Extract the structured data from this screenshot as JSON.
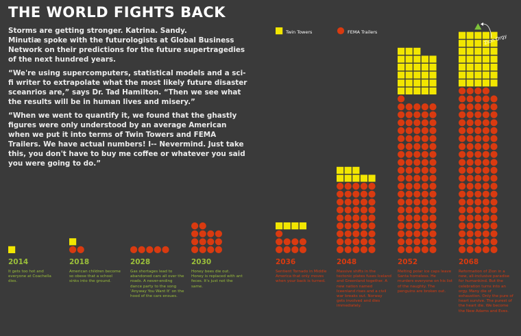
{
  "title": "THE WORLD FIGHTS BACK",
  "intro": [
    "Storms are getting stronger. Katrina. Sandy.",
    "Minutiæ spoke with the futurologists at Global Business Network on their predictions for the future supertragedies of the next hundred years.",
    "“We're using supercomputers, statistical models and a sci-fi writer to extrapolate what the most likely future disaster sceanrios are,” says Dr. Tad Hamilton. “Then we see what the results will be in human lives and misery.”",
    "“When we went to quantify it, we found that the ghastly figures were only understood by an average American when we put it into terms of Twin Towers and FEMA Trailers. We have actual numbers! I-- Nevermind. Just take this, you don't have to buy me coffee or whatever you said you were going to do.”"
  ],
  "colors": {
    "background": "#3a3a3a",
    "twin_towers": "#f2e600",
    "fema_trailers": "#d93a10",
    "year_green": "#9bbf3a",
    "year_red": "#d93a10",
    "zion_orgy": "#7dc23a"
  },
  "annotation": "Zion Orgy",
  "chart_data": {
    "type": "bar",
    "encoding": "stacked unit icons (square = Twin Towers, circle = FEMA Trailers)",
    "legend": {
      "placement": "top-center"
    },
    "series": [
      {
        "name": "Twin Towers",
        "symbol": "square",
        "color": "#f2e600",
        "values": [
          1,
          1,
          0,
          0,
          4,
          8,
          28,
          35
        ]
      },
      {
        "name": "FEMA Trailers",
        "symbol": "circle",
        "color": "#d93a10",
        "values": [
          0,
          2,
          5,
          14,
          9,
          45,
          96,
          104
        ]
      }
    ],
    "extra_icons": [
      {
        "year": "2068",
        "symbol": "triangle",
        "color": "#7dc23a",
        "count": 1
      }
    ],
    "categories": [
      "2014",
      "2018",
      "2028",
      "2030",
      "2036",
      "2048",
      "2052",
      "2068"
    ],
    "descriptions": [
      "It gets too hot and everyone at Coachella dies.",
      "American children become so obese that a school sinks into the ground.",
      "Gas shortages lead to abandoned cars all over the roads. A never-ending dance party to the song ‘Anyway You Want It’ on the hood of the cars ensues.",
      "Honey bees die out. Honey is replaced with ant feces. It's just not the same.",
      "Sentient Tornado in Middle America that only moves when your back is turned.",
      "Massive shifts in the tectonic plates fuses Iceland and Greenland together. A new nation named Iceenland rises and a civil war breaks out. Norway gets involved and dies immediately.",
      "Melting polar ice caps leave Santa homeless. He murders everyone on his list of the naughty. The penguins are broken out.",
      "Reformation of Zion in a new, all-inclusive paradise for humankind. But the celebration turns into an orgy. Many die of exhaustion. Only the pure of heart survive. The purest of the heart die. We become the New Adams and Eves."
    ]
  }
}
